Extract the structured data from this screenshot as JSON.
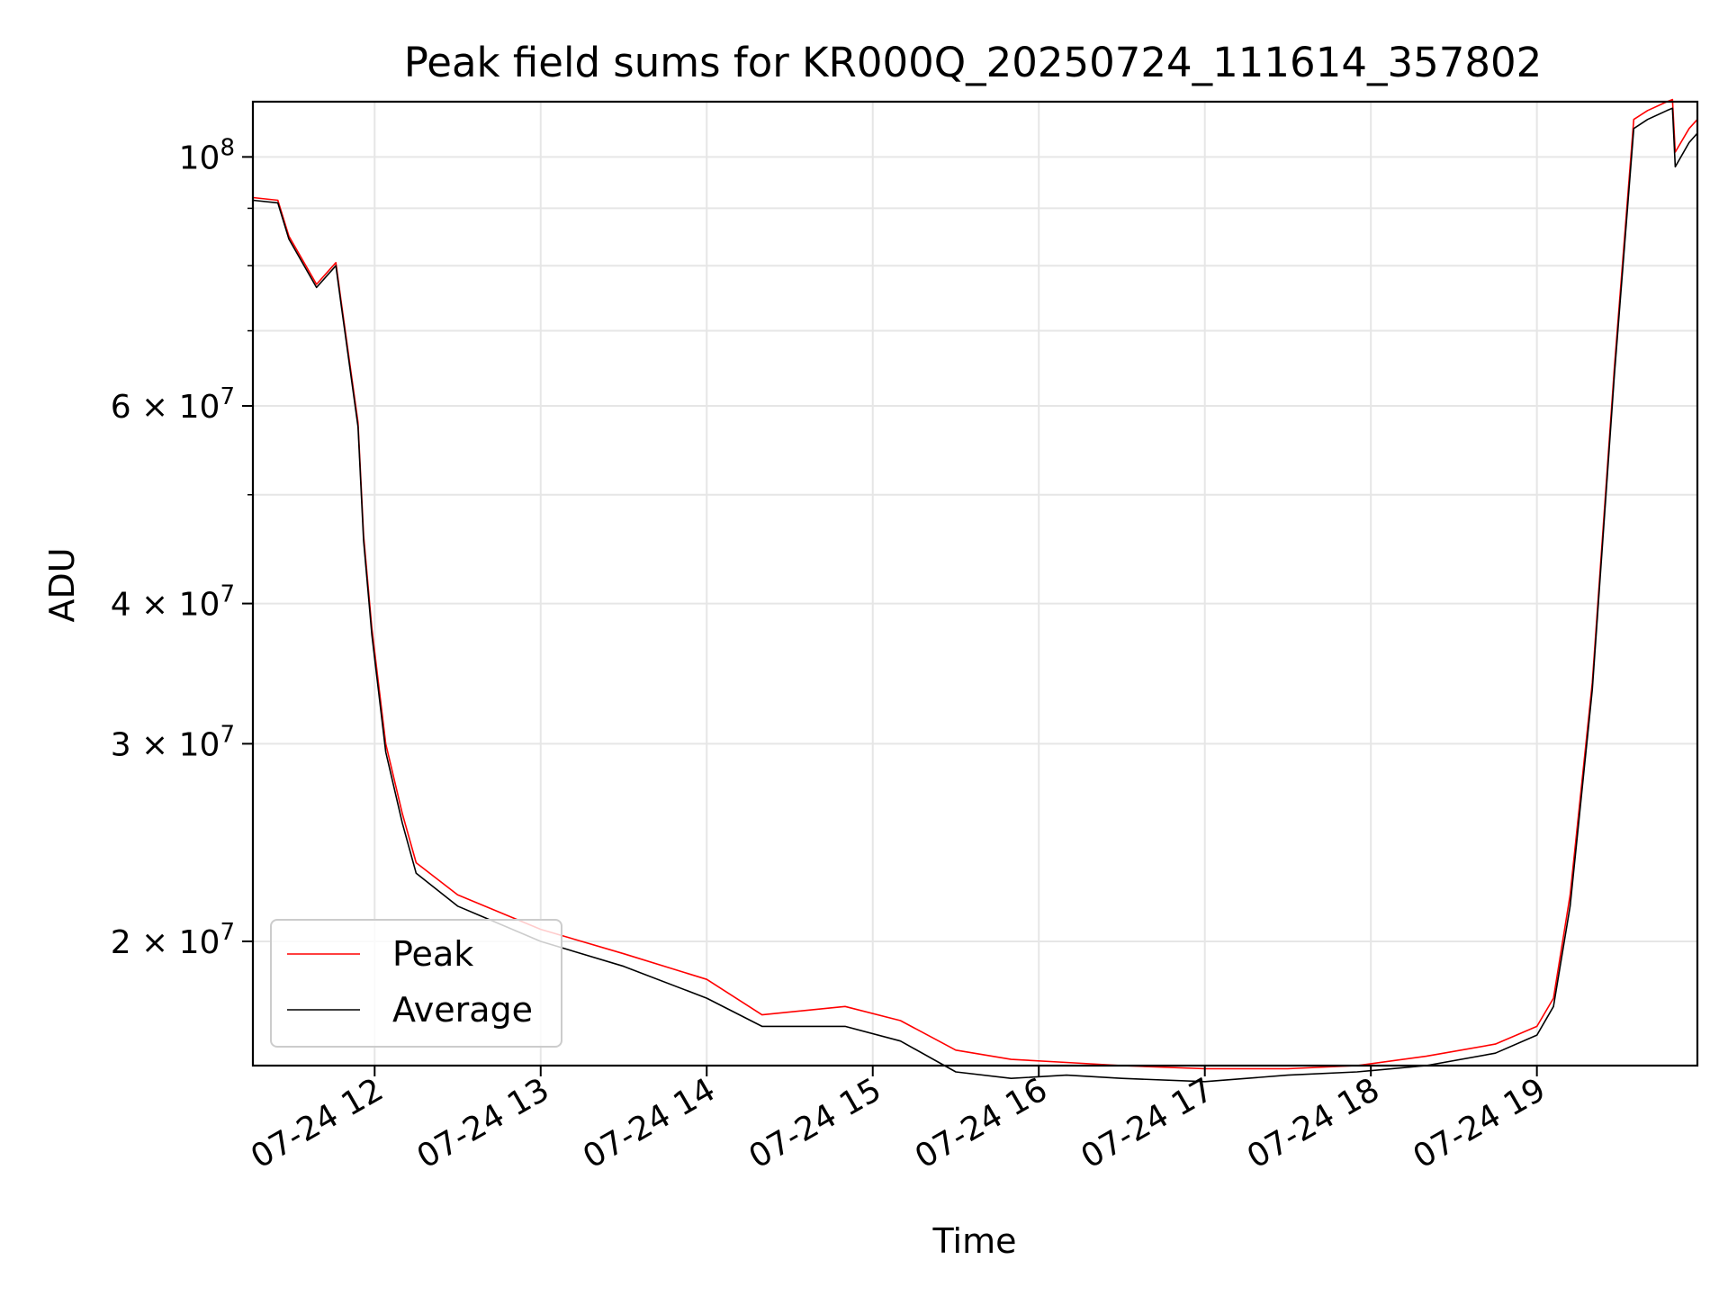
{
  "chart_data": {
    "type": "line",
    "title": "Peak field sums for KR000Q_20250724_111614_357802",
    "xlabel": "Time",
    "ylabel": "ADU",
    "yscale": "log",
    "xlim": [
      "2025-07-24 11:16",
      "2025-07-24 19:58"
    ],
    "ylim": [
      15500000,
      112000000
    ],
    "grid": true,
    "legend_position": "lower-left",
    "x_ticks": [
      "07-24 12",
      "07-24 13",
      "07-24 14",
      "07-24 15",
      "07-24 16",
      "07-24 17",
      "07-24 18",
      "07-24 19"
    ],
    "x_tick_times": [
      "2025-07-24 12:00",
      "2025-07-24 13:00",
      "2025-07-24 14:00",
      "2025-07-24 15:00",
      "2025-07-24 16:00",
      "2025-07-24 17:00",
      "2025-07-24 18:00",
      "2025-07-24 19:00"
    ],
    "y_major_ticks": [
      {
        "value": 20000000,
        "mantissa": "2",
        "exp": "7"
      },
      {
        "value": 30000000,
        "mantissa": "3",
        "exp": "7"
      },
      {
        "value": 40000000,
        "mantissa": "4",
        "exp": "7"
      },
      {
        "value": 60000000,
        "mantissa": "6",
        "exp": "7"
      },
      {
        "value": 100000000,
        "mantissa": "",
        "exp": "8"
      }
    ],
    "y_minor_gridlines": [
      50000000,
      70000000,
      80000000,
      90000000
    ],
    "series": [
      {
        "name": "Peak",
        "color": "#ff0000",
        "x": [
          "2025-07-24 11:16",
          "2025-07-24 11:25",
          "2025-07-24 11:29",
          "2025-07-24 11:39",
          "2025-07-24 11:46",
          "2025-07-24 11:48",
          "2025-07-24 11:54",
          "2025-07-24 11:56",
          "2025-07-24 11:59",
          "2025-07-24 12:04",
          "2025-07-24 12:10",
          "2025-07-24 12:15",
          "2025-07-24 12:30",
          "2025-07-24 13:00",
          "2025-07-24 13:30",
          "2025-07-24 14:00",
          "2025-07-24 14:20",
          "2025-07-24 14:50",
          "2025-07-24 15:10",
          "2025-07-24 15:30",
          "2025-07-24 15:50",
          "2025-07-24 16:10",
          "2025-07-24 16:30",
          "2025-07-24 17:00",
          "2025-07-24 17:30",
          "2025-07-24 17:55",
          "2025-07-24 18:20",
          "2025-07-24 18:45",
          "2025-07-24 19:00",
          "2025-07-24 19:06",
          "2025-07-24 19:12",
          "2025-07-24 19:20",
          "2025-07-24 19:28",
          "2025-07-24 19:35",
          "2025-07-24 19:40",
          "2025-07-24 19:47",
          "2025-07-24 19:49",
          "2025-07-24 19:50",
          "2025-07-24 19:55",
          "2025-07-24 19:58"
        ],
        "y": [
          92000000,
          91500000,
          85000000,
          77000000,
          80500000,
          74000000,
          58000000,
          46000000,
          38000000,
          30000000,
          26000000,
          23500000,
          22000000,
          20500000,
          19500000,
          18500000,
          17200000,
          17500000,
          17000000,
          16000000,
          15700000,
          15600000,
          15500000,
          15400000,
          15400000,
          15500000,
          15800000,
          16200000,
          16800000,
          17800000,
          22000000,
          34000000,
          65000000,
          108000000,
          110000000,
          112000000,
          112500000,
          101000000,
          106000000,
          108000000
        ]
      },
      {
        "name": "Average",
        "color": "#000000",
        "x": [
          "2025-07-24 11:16",
          "2025-07-24 11:25",
          "2025-07-24 11:29",
          "2025-07-24 11:39",
          "2025-07-24 11:46",
          "2025-07-24 11:48",
          "2025-07-24 11:54",
          "2025-07-24 11:56",
          "2025-07-24 11:59",
          "2025-07-24 12:04",
          "2025-07-24 12:10",
          "2025-07-24 12:15",
          "2025-07-24 12:30",
          "2025-07-24 13:00",
          "2025-07-24 13:30",
          "2025-07-24 14:00",
          "2025-07-24 14:20",
          "2025-07-24 14:50",
          "2025-07-24 15:10",
          "2025-07-24 15:30",
          "2025-07-24 15:50",
          "2025-07-24 16:10",
          "2025-07-24 16:30",
          "2025-07-24 17:00",
          "2025-07-24 17:30",
          "2025-07-24 17:55",
          "2025-07-24 18:20",
          "2025-07-24 18:45",
          "2025-07-24 19:00",
          "2025-07-24 19:06",
          "2025-07-24 19:12",
          "2025-07-24 19:20",
          "2025-07-24 19:28",
          "2025-07-24 19:35",
          "2025-07-24 19:40",
          "2025-07-24 19:47",
          "2025-07-24 19:49",
          "2025-07-24 19:50",
          "2025-07-24 19:55",
          "2025-07-24 19:58"
        ],
        "y": [
          91500000,
          91000000,
          84500000,
          76500000,
          80000000,
          73500000,
          57500000,
          45500000,
          37500000,
          29500000,
          25500000,
          23000000,
          21500000,
          20000000,
          19000000,
          17800000,
          16800000,
          16800000,
          16300000,
          15300000,
          15100000,
          15200000,
          15100000,
          15000000,
          15200000,
          15300000,
          15500000,
          15900000,
          16500000,
          17500000,
          21500000,
          33500000,
          64000000,
          106000000,
          108000000,
          110000000,
          110500000,
          98000000,
          103000000,
          105000000
        ]
      }
    ]
  }
}
